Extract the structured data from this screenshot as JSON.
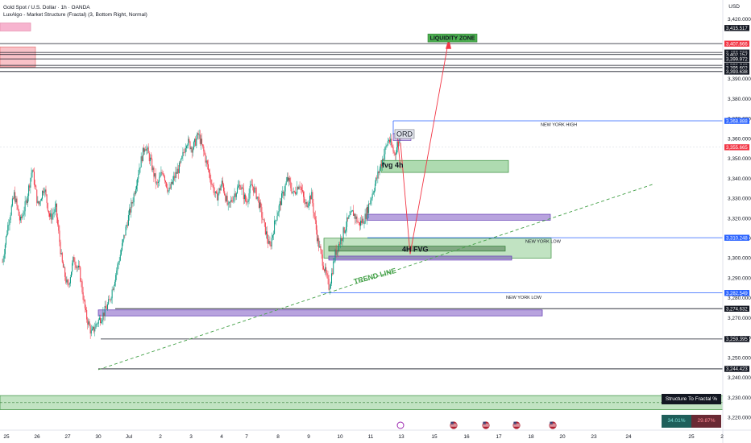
{
  "header": {
    "title": "Gold Spot / U.S. Dollar · 1h · OANDA",
    "indicator": "LuxAlgo - Market Structure (Fractal) (3, Bottom Right, Normal)",
    "currency": "USD"
  },
  "chart_data": {
    "type": "candlestick",
    "ylim": [
      3215,
      3430
    ],
    "y_ticks": [
      3220,
      3230,
      3240,
      3250,
      3260,
      3270,
      3280,
      3290,
      3300,
      3310,
      3320,
      3330,
      3340,
      3350,
      3360,
      3370,
      3380,
      3390,
      3420
    ],
    "x_ticks": [
      "25",
      "26",
      "27",
      "30",
      "Jul",
      "2",
      "3",
      "4",
      "7",
      "8",
      "9",
      "10",
      "11",
      "13",
      "15",
      "16",
      "17",
      "18",
      "20",
      "23",
      "24",
      "25",
      "2"
    ],
    "price_path": [
      3298,
      3318,
      3332,
      3318,
      3328,
      3345,
      3326,
      3336,
      3320,
      3325,
      3298,
      3285,
      3300,
      3293,
      3272,
      3262,
      3268,
      3272,
      3278,
      3291,
      3304,
      3318,
      3330,
      3345,
      3357,
      3348,
      3336,
      3344,
      3333,
      3341,
      3347,
      3359,
      3355,
      3362,
      3352,
      3340,
      3330,
      3338,
      3325,
      3332,
      3337,
      3328,
      3337,
      3330,
      3317,
      3305,
      3320,
      3330,
      3340,
      3332,
      3338,
      3326,
      3332,
      3310,
      3297,
      3285,
      3302,
      3310,
      3318,
      3323,
      3317,
      3320,
      3330,
      3340,
      3350,
      3360,
      3352,
      3362
    ],
    "price_levels": [
      {
        "value": 3415.517,
        "label": "3,415.517",
        "color": "#131722"
      },
      {
        "value": 3407.666,
        "label": "3,407.666",
        "color": "#f23645"
      },
      {
        "value": 3403.202,
        "label": "3,403.202",
        "color": "#131722"
      },
      {
        "value": 3402.157,
        "label": "3,402.157",
        "color": "#131722"
      },
      {
        "value": 3399.972,
        "label": "3,399.972",
        "color": "#131722"
      },
      {
        "value": 3396.742,
        "label": "3,396.742",
        "color": "#131722"
      },
      {
        "value": 3395.602,
        "label": "3,395.602",
        "color": "#131722"
      },
      {
        "value": 3393.638,
        "label": "3,393.638",
        "color": "#131722"
      },
      {
        "value": 3368.888,
        "label": "3,368.888",
        "color": "#2962ff"
      },
      {
        "value": 3355.665,
        "label": "3,355.665",
        "color": "#f23645"
      },
      {
        "value": 3310.248,
        "label": "3,310.248",
        "color": "#2962ff"
      },
      {
        "value": 3282.549,
        "label": "3,282.549",
        "color": "#2962ff"
      },
      {
        "value": 3274.632,
        "label": "3,274.632",
        "color": "#131722"
      },
      {
        "value": 3259.395,
        "label": "3,259.395",
        "color": "#131722"
      },
      {
        "value": 3244.423,
        "label": "3,244.423",
        "color": "#131722"
      }
    ],
    "annotations": {
      "liquidity_zone": "LIQUIDITY ZONE",
      "ord": "ORD",
      "fvg_4h_small": "fvg 4h",
      "fvg_4h": "4H FVG",
      "trend_line": "TREND LINE",
      "ny_high": "NEW YORK HIGH",
      "ny_low_1": "NEW YORK LOW",
      "ny_low_2": "NEW YORK LOW"
    },
    "fractal_table": {
      "title": "Structure To Fractal %",
      "bullish": "34.01%",
      "bearish": "29.87%"
    },
    "colors": {
      "up": "#089981",
      "down": "#f23645",
      "zone_green": "#4caf50",
      "zone_purple": "#7e57c2",
      "axis_line": "#787b86"
    }
  }
}
